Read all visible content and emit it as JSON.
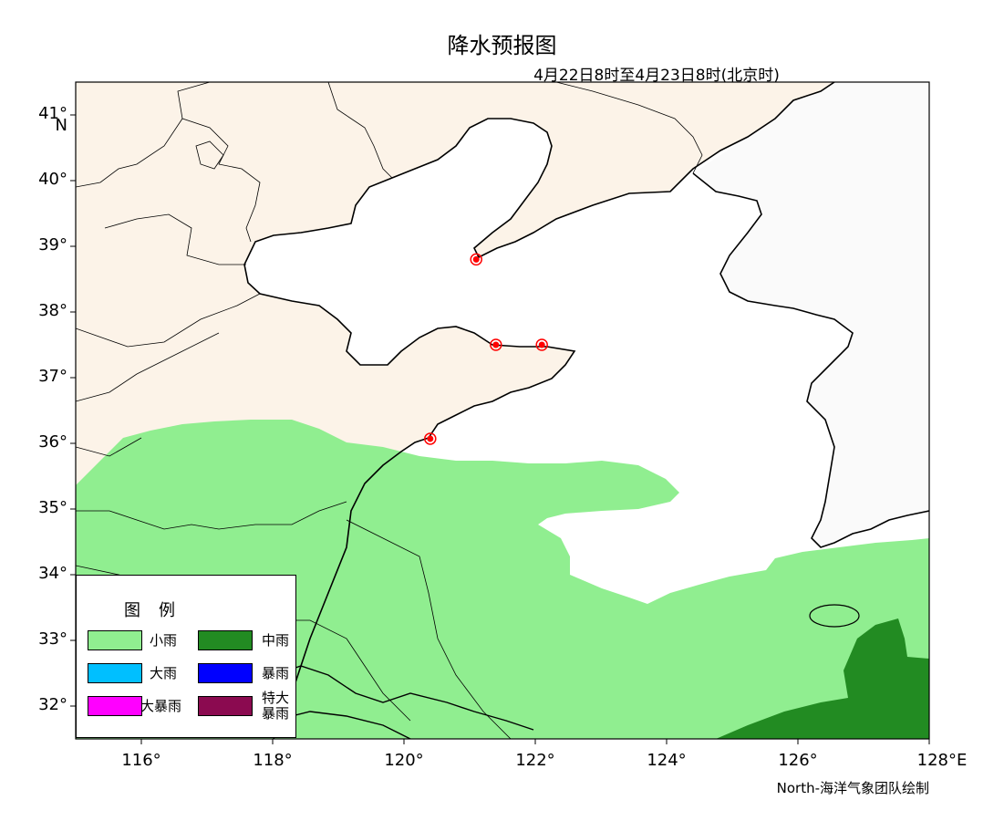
{
  "title": "降水预报图",
  "subtitle": "4月22日8时至4月23日8时(北京时)",
  "credit": "North-海洋气象团队绘制",
  "lat_labels": [
    {
      "text": "41°",
      "deg": 41
    },
    {
      "text": "40°",
      "deg": 40
    },
    {
      "text": "39°",
      "deg": 39
    },
    {
      "text": "38°",
      "deg": 38
    },
    {
      "text": "37°",
      "deg": 37
    },
    {
      "text": "36°",
      "deg": 36
    },
    {
      "text": "35°",
      "deg": 35
    },
    {
      "text": "34°",
      "deg": 34
    },
    {
      "text": "33°",
      "deg": 33
    },
    {
      "text": "32°",
      "deg": 32
    }
  ],
  "lat_axis_letter": "N",
  "lon_labels": [
    {
      "text": "116°",
      "deg": 116
    },
    {
      "text": "118°",
      "deg": 118
    },
    {
      "text": "120°",
      "deg": 120
    },
    {
      "text": "122°",
      "deg": 122
    },
    {
      "text": "124°",
      "deg": 124
    },
    {
      "text": "126°",
      "deg": 126
    },
    {
      "text": "128°E",
      "deg": 128
    }
  ],
  "extent": {
    "lon": [
      115,
      128
    ],
    "lat": [
      31.5,
      41.5
    ]
  },
  "legend": {
    "title": "图例",
    "items": [
      {
        "label": "小雨",
        "color": "#90ee90"
      },
      {
        "label": "中雨",
        "color": "#228b22"
      },
      {
        "label": "大雨",
        "color": "#00bfff"
      },
      {
        "label": "暴雨",
        "color": "#0000ff"
      },
      {
        "label": "大暴雨",
        "color": "#ff00ff"
      },
      {
        "label": "特大\n暴雨",
        "color": "#8b0a50"
      }
    ]
  },
  "colors": {
    "land_china": "#fcf3e8",
    "land_korea": "#fafafa",
    "sea": "#ffffff",
    "light_rain": "#90ee90",
    "moderate_rain": "#228b22",
    "station": "#ff0000"
  },
  "stations": [
    {
      "name": "dalian",
      "lon": 121.1,
      "lat": 38.8
    },
    {
      "name": "penglai",
      "lon": 121.4,
      "lat": 37.5
    },
    {
      "name": "weihai",
      "lon": 122.1,
      "lat": 37.5
    },
    {
      "name": "qingdao",
      "lon": 120.4,
      "lat": 36.07
    }
  ]
}
